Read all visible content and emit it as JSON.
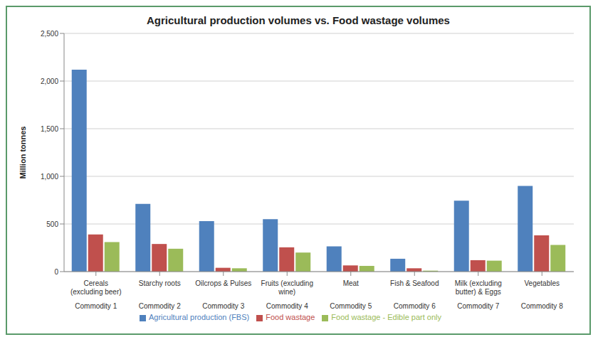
{
  "chart_data": {
    "type": "bar",
    "title": "Agricultural production volumes vs. Food wastage volumes",
    "y_label": "Million tonnes",
    "categories": [
      "Cereals (excluding beer)",
      "Starchy roots",
      "Oilcrops & Pulses",
      "Fruits (excluding wine)",
      "Meat",
      "Fish & Seafood",
      "Milk (excluding butter) & Eggs",
      "Vegetables"
    ],
    "groups": [
      "Commodity 1",
      "Commodity 2",
      "Commodity 3",
      "Commodity 4",
      "Commodity 5",
      "Commodity 6",
      "Commodity 7",
      "Commodity 8"
    ],
    "series": [
      {
        "name": "Agricultural production (FBS)",
        "color": "#4f81bd",
        "values": [
          2120,
          710,
          530,
          550,
          265,
          135,
          745,
          900
        ]
      },
      {
        "name": "Food wastage",
        "color": "#c0504d",
        "values": [
          390,
          290,
          40,
          255,
          65,
          35,
          120,
          380
        ]
      },
      {
        "name": "Food wastage - Edible part only",
        "color": "#9bbb59",
        "values": [
          310,
          240,
          35,
          200,
          60,
          10,
          115,
          280
        ]
      }
    ],
    "ylim": [
      0,
      2500
    ],
    "yticks": [
      0,
      500,
      {
        "value": 1000,
        "label": "1,000"
      },
      {
        "value": 1500,
        "label": "1,500"
      },
      {
        "value": 2000,
        "label": "2,000"
      },
      {
        "value": 2500,
        "label": "2,500"
      }
    ],
    "grid": true,
    "legend": "bottom"
  }
}
